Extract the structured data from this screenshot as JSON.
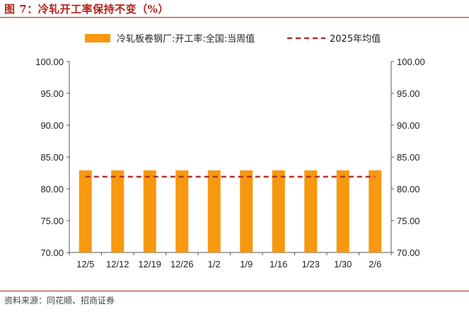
{
  "header": {
    "title": "图 7：冷轧开工率保持不变（%）"
  },
  "footer": {
    "source": "资料来源：同花顺、招商证券"
  },
  "colors": {
    "bar": "#f7980f",
    "line": "#b5302a",
    "accent": "#b02418"
  },
  "chart_data": {
    "type": "bar",
    "categories": [
      "12/5",
      "12/12",
      "12/19",
      "12/26",
      "1/2",
      "1/9",
      "1/16",
      "1/23",
      "1/30",
      "2/6"
    ],
    "series": [
      {
        "name": "冷轧板卷钢厂:开工率:全国:当周值",
        "type": "bar",
        "values": [
          82.9,
          82.9,
          82.9,
          82.9,
          82.9,
          82.9,
          82.9,
          82.9,
          82.9,
          82.9
        ]
      },
      {
        "name": "2025年均值",
        "type": "line",
        "style": "dashed",
        "values": [
          81.9,
          81.9,
          81.9,
          81.9,
          81.9,
          81.9,
          81.9,
          81.9,
          81.9,
          81.9
        ]
      }
    ],
    "yticks": [
      "100.00",
      "95.00",
      "90.00",
      "85.00",
      "80.00",
      "75.00",
      "70.00"
    ],
    "ylim": [
      70,
      100
    ],
    "y2lim": [
      70,
      100
    ],
    "legend": "top",
    "grid": false
  }
}
